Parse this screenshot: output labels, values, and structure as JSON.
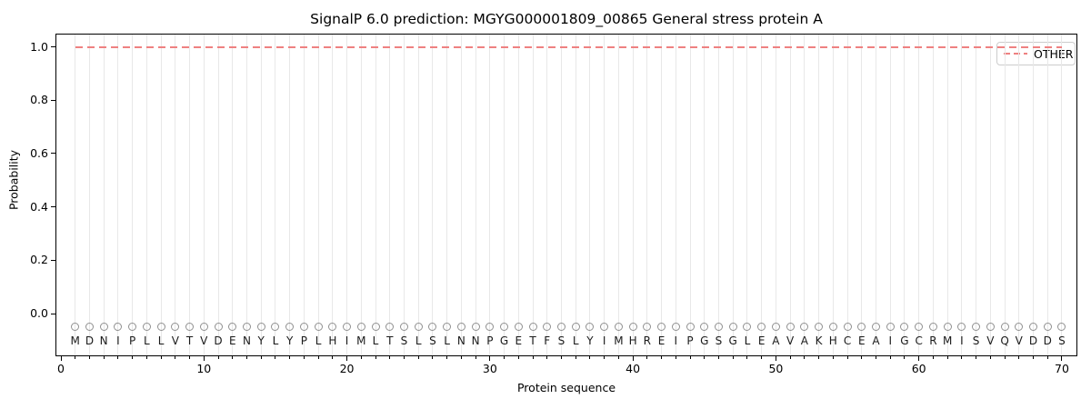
{
  "title": "SignalP 6.0 prediction: MGYG000001809_00865 General stress protein A",
  "axes": {
    "xlabel": "Protein sequence",
    "ylabel": "Probability"
  },
  "legend": {
    "label": "OTHER",
    "position": "upper right",
    "line_style": "dashed",
    "line_color": "#ee8181"
  },
  "colors": {
    "other_line": "#ee8181",
    "grid": "#e8e8e8",
    "marker_ring": "#909090",
    "letter": "#1a1a1a",
    "spine": "#000000"
  },
  "chart_data": {
    "type": "line",
    "title": "SignalP 6.0 prediction: MGYG000001809_00865 General stress protein A",
    "xlabel": "Protein sequence",
    "ylabel": "Probability",
    "xlim": [
      -0.4,
      71.1
    ],
    "ylim": [
      -0.16,
      1.05
    ],
    "x_ticks": [
      0,
      10,
      20,
      30,
      40,
      50,
      60,
      70
    ],
    "y_tick_labels": [
      "0.0",
      "0.2",
      "0.4",
      "0.6",
      "0.8",
      "1.0"
    ],
    "y_tick_values": [
      0.0,
      0.2,
      0.4,
      0.6,
      0.8,
      1.0
    ],
    "grid": "vertical gridline at every residue position, no horizontal grid",
    "legend_position": "upper right",
    "sequence": "MDNIPLLVTVDENYLYPLHIMLTSLSLNNPGETFSLYIMHREIPGSGLEAVAKHCEAIGCRMISVQVDDS",
    "sequence_length": 70,
    "marker": {
      "shape": "open-circle",
      "y": -0.05
    },
    "letters_y": -0.1,
    "series": [
      {
        "name": "OTHER",
        "linestyle": "dashed",
        "color": "#ee8181",
        "x": [
          1,
          2,
          3,
          4,
          5,
          6,
          7,
          8,
          9,
          10,
          11,
          12,
          13,
          14,
          15,
          16,
          17,
          18,
          19,
          20,
          21,
          22,
          23,
          24,
          25,
          26,
          27,
          28,
          29,
          30,
          31,
          32,
          33,
          34,
          35,
          36,
          37,
          38,
          39,
          40,
          41,
          42,
          43,
          44,
          45,
          46,
          47,
          48,
          49,
          50,
          51,
          52,
          53,
          54,
          55,
          56,
          57,
          58,
          59,
          60,
          61,
          62,
          63,
          64,
          65,
          66,
          67,
          68,
          69,
          70
        ],
        "y": [
          1.0,
          1.0,
          1.0,
          1.0,
          1.0,
          1.0,
          1.0,
          1.0,
          1.0,
          1.0,
          1.0,
          1.0,
          1.0,
          1.0,
          1.0,
          1.0,
          1.0,
          1.0,
          1.0,
          1.0,
          1.0,
          1.0,
          1.0,
          1.0,
          1.0,
          1.0,
          1.0,
          1.0,
          1.0,
          1.0,
          1.0,
          1.0,
          1.0,
          1.0,
          1.0,
          1.0,
          1.0,
          1.0,
          1.0,
          1.0,
          1.0,
          1.0,
          1.0,
          1.0,
          1.0,
          1.0,
          1.0,
          1.0,
          1.0,
          1.0,
          1.0,
          1.0,
          1.0,
          1.0,
          1.0,
          1.0,
          1.0,
          1.0,
          1.0,
          1.0,
          1.0,
          1.0,
          1.0,
          1.0,
          1.0,
          1.0,
          1.0,
          1.0,
          1.0,
          1.0
        ]
      }
    ]
  }
}
